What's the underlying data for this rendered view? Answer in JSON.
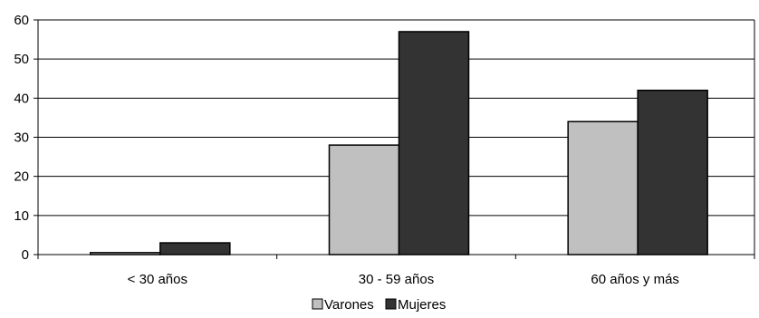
{
  "chart_data": {
    "type": "bar",
    "categories": [
      "< 30 años",
      "30 - 59 años",
      "60 años y más"
    ],
    "series": [
      {
        "name": "Varones",
        "values": [
          0.5,
          28,
          34
        ],
        "color": "#c0c0c0"
      },
      {
        "name": "Mujeres",
        "values": [
          3,
          57,
          42
        ],
        "color": "#333333"
      }
    ],
    "y_ticks": [
      "0",
      "10",
      "20",
      "30",
      "40",
      "50",
      "60"
    ],
    "ylim": [
      0,
      60
    ],
    "grid": true,
    "legend_position": "bottom-center",
    "title": "",
    "xlabel": "",
    "ylabel": ""
  }
}
